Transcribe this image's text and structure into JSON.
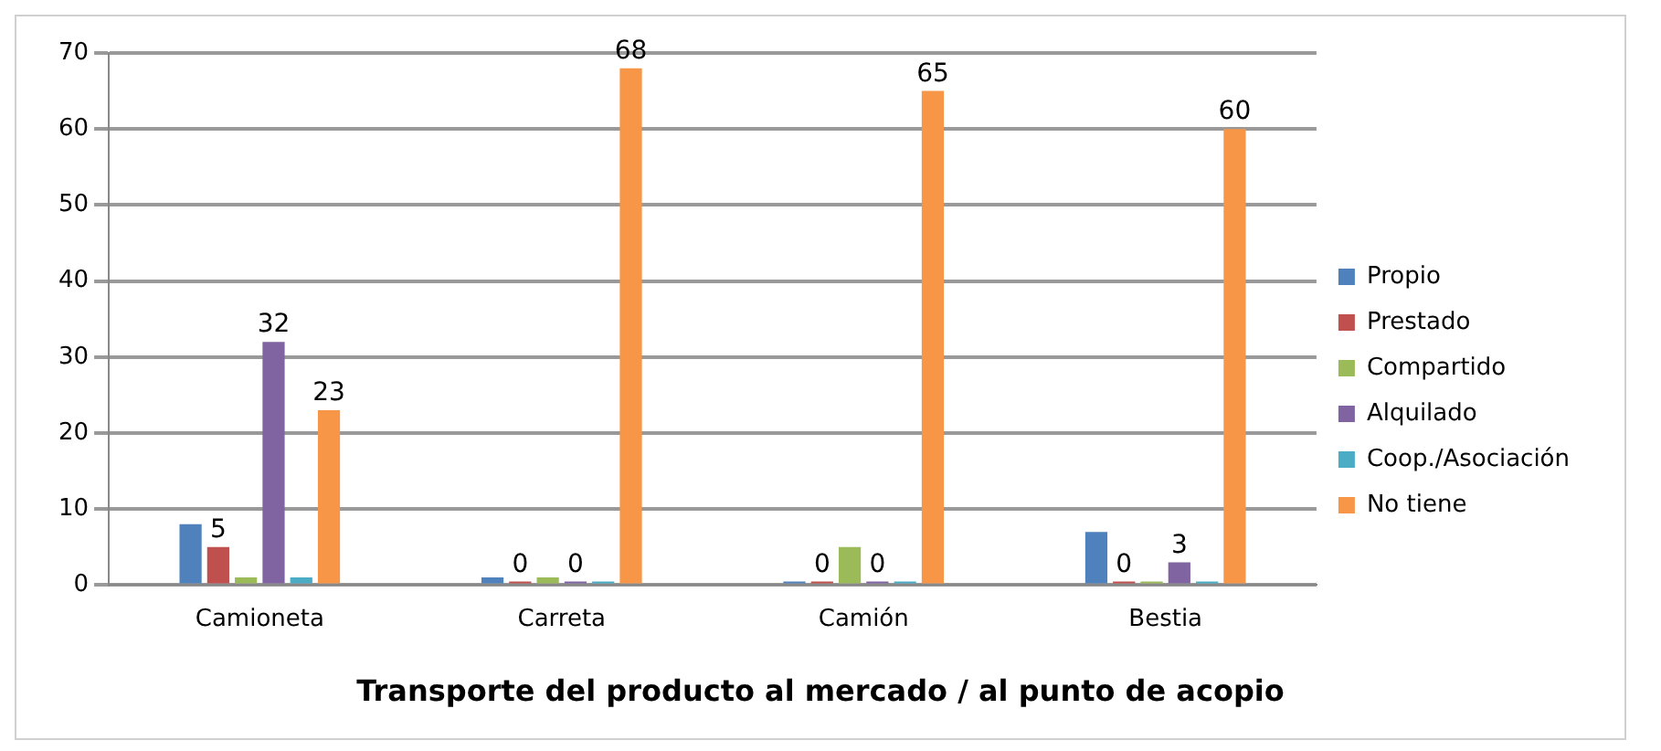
{
  "chart_data": {
    "type": "bar",
    "title": "Transporte del producto al mercado / al punto de acopio",
    "categories": [
      "Camioneta",
      "Carreta",
      "Camión",
      "Bestia"
    ],
    "series": [
      {
        "name": "Propio",
        "color": "#4f81bd",
        "values": [
          8,
          1,
          0,
          7
        ],
        "value_labels": [
          null,
          null,
          null,
          null
        ]
      },
      {
        "name": "Prestado",
        "color": "#c0504d",
        "values": [
          5,
          0,
          0,
          0
        ],
        "value_labels": [
          "5",
          "0",
          "0",
          "0"
        ]
      },
      {
        "name": "Compartido",
        "color": "#9bbb59",
        "values": [
          1,
          1,
          5,
          0
        ],
        "value_labels": [
          null,
          null,
          null,
          null
        ]
      },
      {
        "name": "Alquilado",
        "color": "#8064a2",
        "values": [
          32,
          0,
          0,
          3
        ],
        "value_labels": [
          "32",
          "0",
          "0",
          "3"
        ]
      },
      {
        "name": "Coop./Asociación",
        "color": "#4bacc6",
        "values": [
          1,
          0,
          0,
          0
        ],
        "value_labels": [
          null,
          null,
          null,
          null
        ]
      },
      {
        "name": "No tiene",
        "color": "#f79646",
        "values": [
          23,
          68,
          65,
          60
        ],
        "value_labels": [
          "23",
          "68",
          "65",
          "60"
        ]
      }
    ],
    "ylim": [
      0,
      70
    ],
    "yticks": [
      0,
      10,
      20,
      30,
      40,
      50,
      60,
      70
    ],
    "grid": "y",
    "legend": "right"
  }
}
